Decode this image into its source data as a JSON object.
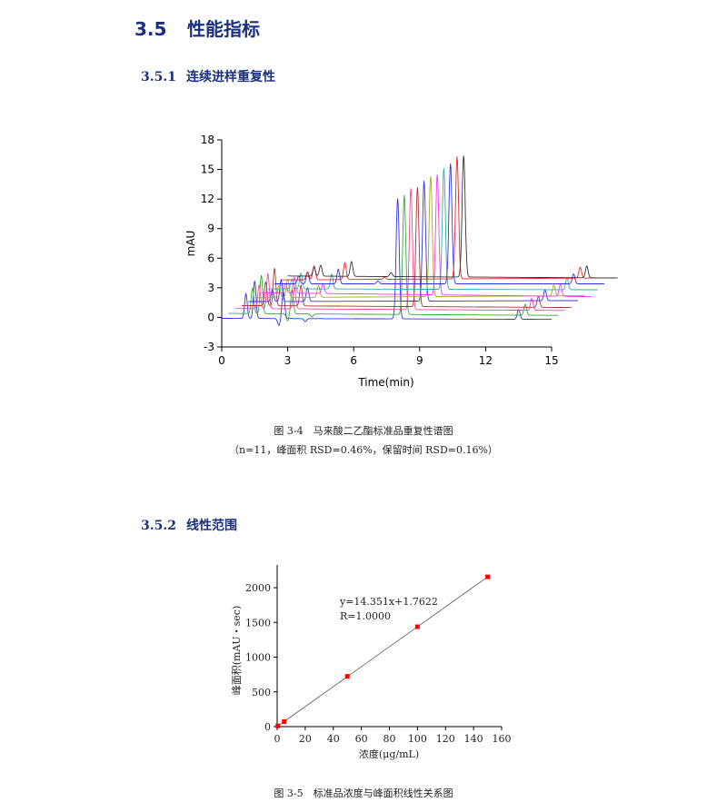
{
  "section": {
    "number": "3.5",
    "title": "性能指标"
  },
  "subsections": [
    {
      "number": "3.5.1",
      "title": "连续进样重复性"
    },
    {
      "number": "3.5.2",
      "title": "线性范围"
    }
  ],
  "figure1": {
    "caption": "图 3-4　马来酸二乙酯标准品重复性谱图",
    "subcaption": "（n=11，峰面积 RSD=0.46%，保留时间 RSD=0.16%）"
  },
  "figure2": {
    "caption": "图 3-5　标准品浓度与峰面积线性关系图"
  },
  "chart_data": [
    {
      "type": "line",
      "xlabel": "Time(min)",
      "ylabel": "mAU",
      "xlim": [
        0,
        15
      ],
      "ylim": [
        -3,
        18
      ],
      "xticks": [
        "0",
        "3",
        "6",
        "9",
        "12",
        "15"
      ],
      "yticks": [
        "-3",
        "0",
        "3",
        "6",
        "9",
        "12",
        "15",
        "18"
      ],
      "series": [
        {
          "color": "#3333dd",
          "start": 0.0,
          "end": 15.0,
          "baseline": [
            -0.1,
            -0.2
          ],
          "peaks": [
            [
              1.1,
              2.5
            ],
            [
              1.5,
              3.8
            ],
            [
              2.6,
              -0.7
            ],
            [
              2.8,
              2.8
            ],
            [
              3.8,
              -0.3
            ],
            [
              8.0,
              12.2
            ],
            [
              13.5,
              1.0
            ]
          ]
        },
        {
          "color": "#33aa33",
          "start": 0.3,
          "end": 15.3,
          "baseline": [
            0.4,
            0.2
          ],
          "peaks": [
            [
              1.4,
              2.6
            ],
            [
              1.8,
              3.9
            ],
            [
              3.0,
              -0.7
            ],
            [
              3.2,
              2.4
            ],
            [
              4.1,
              -0.3
            ],
            [
              8.3,
              12.1
            ],
            [
              13.8,
              1.1
            ]
          ]
        },
        {
          "color": "#ff4499",
          "start": 0.6,
          "end": 15.6,
          "baseline": [
            0.9,
            0.7
          ],
          "peaks": [
            [
              1.7,
              2.4
            ],
            [
              2.1,
              3.6
            ],
            [
              3.3,
              2.2
            ],
            [
              8.6,
              12.3
            ],
            [
              14.1,
              1.2
            ]
          ]
        },
        {
          "color": "#aa3333",
          "start": 0.9,
          "end": 15.9,
          "baseline": [
            1.2,
            1.0
          ],
          "peaks": [
            [
              2.0,
              2.4
            ],
            [
              2.4,
              3.8
            ],
            [
              3.6,
              2.1
            ],
            [
              8.9,
              12.1
            ],
            [
              14.4,
              1.1
            ]
          ]
        },
        {
          "color": "#3333dd",
          "start": 1.2,
          "end": 16.2,
          "baseline": [
            1.6,
            1.7
          ],
          "peaks": [
            [
              2.3,
              1.2
            ],
            [
              2.7,
              2.2
            ],
            [
              3.9,
              1.4
            ],
            [
              9.2,
              12.2
            ],
            [
              14.7,
              1.1
            ]
          ]
        },
        {
          "color": "#aaaa22",
          "start": 1.5,
          "end": 16.5,
          "baseline": [
            2.0,
            2.2
          ],
          "peaks": [
            [
              2.6,
              1.2
            ],
            [
              3.0,
              1.8
            ],
            [
              4.4,
              1.2
            ],
            [
              9.5,
              12.2
            ],
            [
              15.1,
              1.1
            ]
          ]
        },
        {
          "color": "#ff33ff",
          "start": 1.8,
          "end": 16.8,
          "baseline": [
            2.5,
            2.1
          ],
          "peaks": [
            [
              2.9,
              1.0
            ],
            [
              3.3,
              1.6
            ],
            [
              4.6,
              1.0
            ],
            [
              9.8,
              12.2
            ],
            [
              15.4,
              1.2
            ]
          ]
        },
        {
          "color": "#33aaaa",
          "start": 2.1,
          "end": 17.1,
          "baseline": [
            2.9,
            2.8
          ],
          "peaks": [
            [
              3.2,
              1.0
            ],
            [
              3.6,
              1.6
            ],
            [
              5.0,
              1.5
            ],
            [
              10.1,
              12.3
            ],
            [
              15.7,
              1.2
            ]
          ]
        },
        {
          "color": "#3333dd",
          "start": 2.4,
          "end": 17.4,
          "baseline": [
            3.4,
            3.4
          ],
          "peaks": [
            [
              3.5,
              0.8
            ],
            [
              3.9,
              1.2
            ],
            [
              5.3,
              1.5
            ],
            [
              7.1,
              0.3
            ],
            [
              10.4,
              12.2
            ],
            [
              16.0,
              1.0
            ]
          ]
        },
        {
          "color": "#ee2222",
          "start": 2.7,
          "end": 17.7,
          "baseline": [
            3.8,
            4.0
          ],
          "peaks": [
            [
              3.9,
              0.8
            ],
            [
              4.2,
              1.4
            ],
            [
              5.6,
              1.7
            ],
            [
              7.4,
              0.2
            ],
            [
              10.7,
              12.4
            ],
            [
              16.3,
              1.1
            ]
          ]
        },
        {
          "color": "#333333",
          "start": 3.0,
          "end": 18.0,
          "baseline": [
            4.2,
            4.0
          ],
          "peaks": [
            [
              4.2,
              0.9
            ],
            [
              4.5,
              1.1
            ],
            [
              5.9,
              1.5
            ],
            [
              7.7,
              0.4
            ],
            [
              11.0,
              12.3
            ],
            [
              16.6,
              1.2
            ]
          ]
        }
      ]
    },
    {
      "type": "scatter",
      "xlabel": "浓度(μg/mL)",
      "ylabel": "峰面积(mAU・sec)",
      "xlim": [
        0,
        160
      ],
      "ylim": [
        0,
        2300
      ],
      "xticks": [
        "0",
        "20",
        "40",
        "60",
        "80",
        "100",
        "120",
        "140",
        "160"
      ],
      "yticks": [
        "0",
        "500",
        "1000",
        "1500",
        "2000"
      ],
      "x": [
        0.5,
        5,
        50,
        100,
        150
      ],
      "y": [
        10,
        73,
        723,
        1437,
        2155
      ],
      "fit": {
        "slope": 14.351,
        "intercept": 1.7622
      },
      "annotation": [
        "y=14.351x+1.7622",
        "R=1.0000"
      ],
      "marker_color": "#ff0000",
      "line_color": "#555555"
    }
  ]
}
